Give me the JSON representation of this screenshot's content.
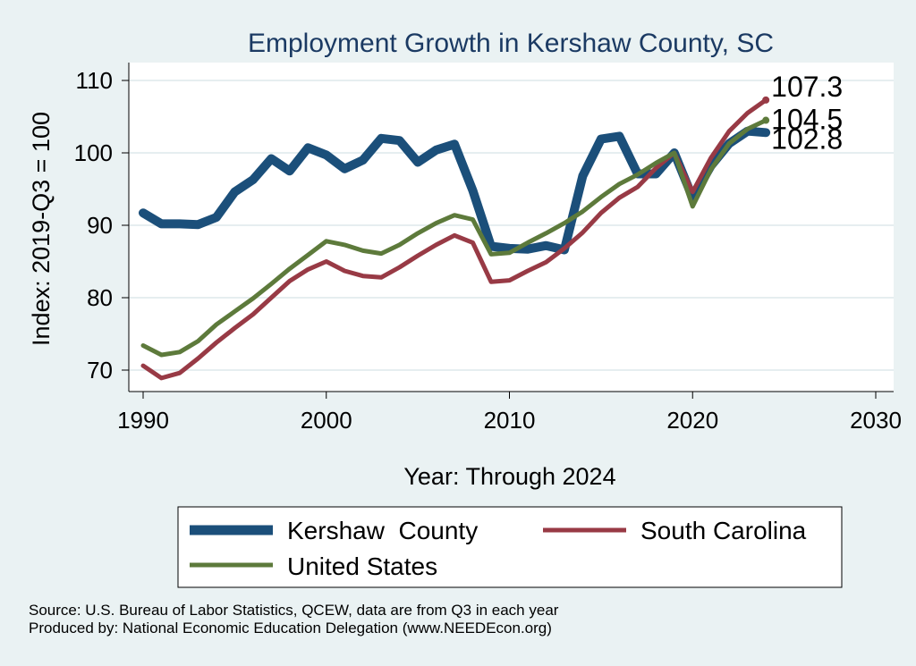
{
  "chart_data": {
    "type": "line",
    "title": "Employment Growth in Kershaw County, SC",
    "xlabel": "Year: Through 2024",
    "ylabel": "Index: 2019-Q3 = 100",
    "xlim": [
      1990,
      2030
    ],
    "ylim": [
      70,
      110
    ],
    "xticks": [
      1990,
      2000,
      2010,
      2020,
      2030
    ],
    "yticks": [
      70,
      80,
      90,
      100,
      110
    ],
    "grid": true,
    "legend_position": "bottom",
    "x": [
      1990,
      1991,
      1992,
      1993,
      1994,
      1995,
      1996,
      1997,
      1998,
      1999,
      2000,
      2001,
      2002,
      2003,
      2004,
      2005,
      2006,
      2007,
      2008,
      2009,
      2010,
      2011,
      2012,
      2013,
      2014,
      2015,
      2016,
      2017,
      2018,
      2019,
      2020,
      2021,
      2022,
      2023,
      2024
    ],
    "series": [
      {
        "name": "Kershaw  County",
        "color": "#1b4f7a",
        "values": [
          91.7,
          90.2,
          90.2,
          90.1,
          91.1,
          94.6,
          96.3,
          99.2,
          97.5,
          100.7,
          99.7,
          97.8,
          99.0,
          102.0,
          101.7,
          98.7,
          100.4,
          101.2,
          94.8,
          87.1,
          86.8,
          86.7,
          87.2,
          86.6,
          96.8,
          101.9,
          102.3,
          97.1,
          97.1,
          100.0,
          93.8,
          98.2,
          101.3,
          103.0,
          102.8
        ],
        "end_label": "102.8"
      },
      {
        "name": "South Carolina",
        "color": "#983a45",
        "values": [
          70.6,
          68.9,
          69.6,
          71.6,
          73.8,
          75.8,
          77.7,
          80.0,
          82.3,
          83.9,
          85.0,
          83.7,
          83.0,
          82.8,
          84.2,
          85.8,
          87.3,
          88.6,
          87.6,
          82.2,
          82.4,
          83.7,
          84.9,
          86.8,
          89.0,
          91.7,
          93.8,
          95.3,
          97.9,
          100.0,
          94.6,
          99.3,
          103.0,
          105.5,
          107.3
        ],
        "end_label": "107.3"
      },
      {
        "name": "United States",
        "color": "#5d7a3b",
        "values": [
          73.4,
          72.1,
          72.5,
          74.0,
          76.3,
          78.1,
          79.9,
          81.9,
          84.0,
          85.9,
          87.8,
          87.3,
          86.5,
          86.1,
          87.3,
          88.9,
          90.3,
          91.4,
          90.8,
          86.0,
          86.2,
          87.6,
          88.9,
          90.3,
          91.9,
          93.9,
          95.7,
          97.0,
          98.6,
          100.0,
          92.6,
          97.7,
          101.3,
          103.3,
          104.5
        ],
        "end_label": "104.5"
      }
    ],
    "notes": [
      "Source: U.S. Bureau of Labor Statistics, QCEW, data are from Q3 in each year",
      "Produced by: National Economic Education Delegation (www.NEEDEcon.org)"
    ]
  }
}
